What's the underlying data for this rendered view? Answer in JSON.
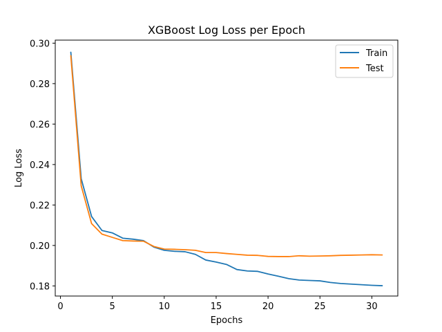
{
  "chart_data": {
    "type": "line",
    "title": "XGBoost Log Loss per Epoch",
    "xlabel": "Epochs",
    "ylabel": "Log Loss",
    "xlim": [
      -0.5,
      32.5
    ],
    "ylim": [
      0.175,
      0.3015
    ],
    "xticks": [
      0,
      5,
      10,
      15,
      20,
      25,
      30
    ],
    "yticks": [
      0.18,
      0.2,
      0.22,
      0.24,
      0.26,
      0.28,
      0.3
    ],
    "ytick_labels": [
      "0.18",
      "0.20",
      "0.22",
      "0.24",
      "0.26",
      "0.28",
      "0.30"
    ],
    "grid": false,
    "legend_position": "top-right",
    "x": [
      1,
      2,
      3,
      4,
      5,
      6,
      7,
      8,
      9,
      10,
      11,
      12,
      13,
      14,
      15,
      16,
      17,
      18,
      19,
      20,
      21,
      22,
      23,
      24,
      25,
      26,
      27,
      28,
      29,
      30,
      31
    ],
    "series": [
      {
        "name": "Train",
        "color": "#1f77b4",
        "values": [
          0.2955,
          0.233,
          0.2143,
          0.2074,
          0.2062,
          0.2036,
          0.2031,
          0.2024,
          0.1992,
          0.1976,
          0.1971,
          0.1969,
          0.1956,
          0.1928,
          0.1918,
          0.1906,
          0.1881,
          0.1874,
          0.1872,
          0.1859,
          0.1848,
          0.1836,
          0.1829,
          0.1827,
          0.1825,
          0.1817,
          0.1812,
          0.1809,
          0.1806,
          0.1803,
          0.1801
        ]
      },
      {
        "name": "Test",
        "color": "#ff7f0e",
        "values": [
          0.2938,
          0.2295,
          0.2108,
          0.2056,
          0.204,
          0.2024,
          0.2022,
          0.2021,
          0.1995,
          0.1982,
          0.1981,
          0.1979,
          0.1976,
          0.1965,
          0.1965,
          0.196,
          0.1956,
          0.1952,
          0.1951,
          0.1946,
          0.1945,
          0.1945,
          0.1949,
          0.1947,
          0.1948,
          0.1949,
          0.1951,
          0.1952,
          0.1953,
          0.1954,
          0.1953
        ]
      }
    ]
  }
}
